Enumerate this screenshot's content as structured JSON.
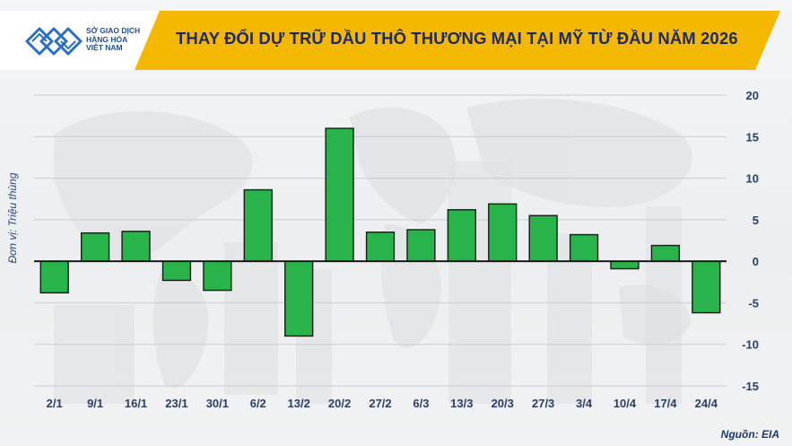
{
  "header": {
    "logo_lines": [
      "SỞ GIAO DỊCH",
      "HÀNG HÓA",
      "VIỆT NAM"
    ],
    "accent_color": "#f5b800",
    "logo_color": "#2a6fc0"
  },
  "footer": {
    "source": "Nguồn: EIA"
  },
  "chart_data": {
    "type": "bar",
    "title": "THAY ĐỔI DỰ TRỮ DẦU THÔ THƯƠNG MẠI TẠI MỸ TỪ ĐẦU NĂM 2026",
    "ylabel": "Đơn vị: Triệu thùng",
    "xlabel": "",
    "categories": [
      "2/1",
      "9/1",
      "16/1",
      "23/1",
      "30/1",
      "6/2",
      "13/2",
      "20/2",
      "27/2",
      "6/3",
      "13/3",
      "20/3",
      "27/3",
      "3/4",
      "10/4",
      "17/4",
      "24/4"
    ],
    "values": [
      -3.8,
      3.4,
      3.6,
      -2.3,
      -3.5,
      8.6,
      -9.0,
      16.0,
      3.5,
      3.8,
      6.2,
      6.9,
      5.5,
      3.2,
      -0.9,
      1.9,
      -6.2
    ],
    "ylim": [
      -15,
      20
    ],
    "yticks": [
      20,
      15,
      10,
      5,
      0,
      -5,
      -10,
      -15
    ],
    "y_axis_position": "right",
    "grid": true,
    "bar_color": "#28b44a"
  }
}
